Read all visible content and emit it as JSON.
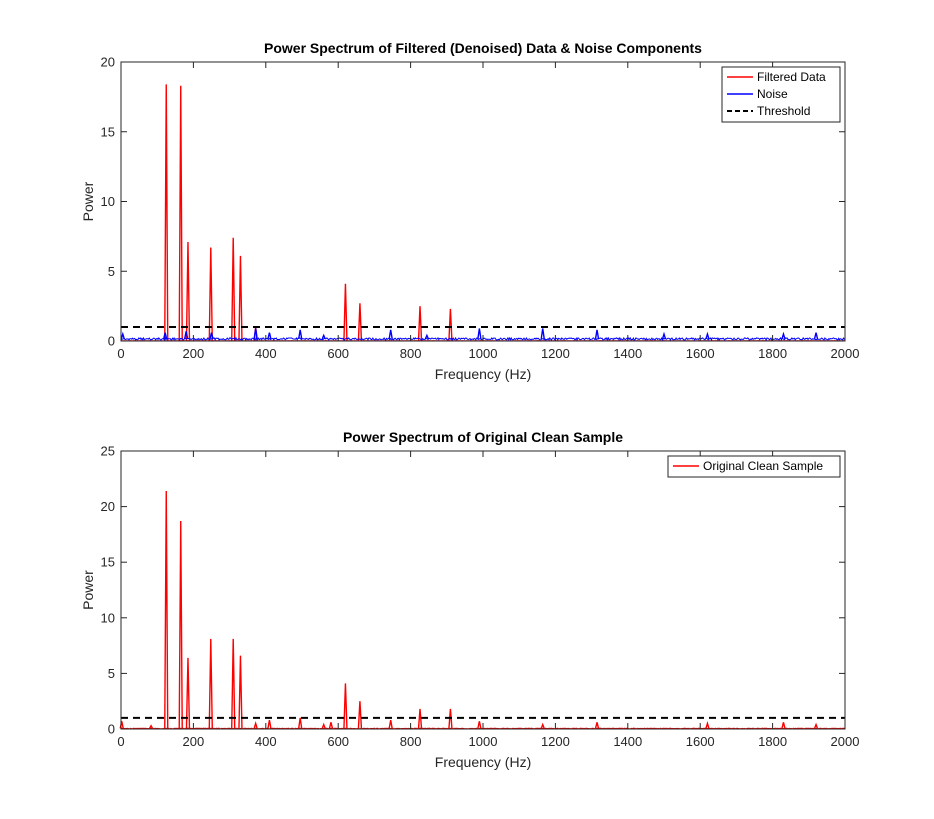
{
  "chart_data": [
    {
      "type": "line",
      "title": "Power Spectrum of Filtered (Denoised) Data & Noise Components",
      "xlabel": "Frequency (Hz)",
      "ylabel": "Power",
      "xlim": [
        0,
        2000
      ],
      "ylim": [
        0,
        20
      ],
      "xticks": [
        0,
        200,
        400,
        600,
        800,
        1000,
        1200,
        1400,
        1600,
        1800,
        2000
      ],
      "yticks": [
        0,
        5,
        10,
        15,
        20
      ],
      "legend_position": "top-right",
      "grid": false,
      "series": [
        {
          "name": "Filtered Data",
          "color": "#ff0000",
          "style": "solid",
          "peaks": [
            {
              "x": 125,
              "y": 18.4
            },
            {
              "x": 165,
              "y": 18.3
            },
            {
              "x": 185,
              "y": 7.1
            },
            {
              "x": 248,
              "y": 6.7
            },
            {
              "x": 310,
              "y": 7.4
            },
            {
              "x": 330,
              "y": 6.1
            },
            {
              "x": 372,
              "y": 1.0
            },
            {
              "x": 620,
              "y": 4.1
            },
            {
              "x": 660,
              "y": 2.7
            },
            {
              "x": 826,
              "y": 2.5
            },
            {
              "x": 910,
              "y": 2.3
            }
          ]
        },
        {
          "name": "Noise",
          "color": "#0000ff",
          "style": "solid",
          "baseline": 0.15,
          "peaks": [
            {
              "x": 5,
              "y": 0.5
            },
            {
              "x": 122,
              "y": 0.6
            },
            {
              "x": 180,
              "y": 0.7
            },
            {
              "x": 250,
              "y": 0.6
            },
            {
              "x": 372,
              "y": 0.9
            },
            {
              "x": 410,
              "y": 0.6
            },
            {
              "x": 495,
              "y": 0.8
            },
            {
              "x": 560,
              "y": 0.4
            },
            {
              "x": 745,
              "y": 0.8
            },
            {
              "x": 845,
              "y": 0.4
            },
            {
              "x": 990,
              "y": 0.9
            },
            {
              "x": 1165,
              "y": 0.9
            },
            {
              "x": 1315,
              "y": 0.8
            },
            {
              "x": 1500,
              "y": 0.5
            },
            {
              "x": 1620,
              "y": 0.5
            },
            {
              "x": 1830,
              "y": 0.5
            },
            {
              "x": 1920,
              "y": 0.6
            }
          ]
        },
        {
          "name": "Threshold",
          "color": "#000000",
          "style": "dashed",
          "y": 1.0
        }
      ]
    },
    {
      "type": "line",
      "title": "Power Spectrum of Original Clean Sample",
      "xlabel": "Frequency (Hz)",
      "ylabel": "Power",
      "xlim": [
        0,
        2000
      ],
      "ylim": [
        0,
        25
      ],
      "xticks": [
        0,
        200,
        400,
        600,
        800,
        1000,
        1200,
        1400,
        1600,
        1800,
        2000
      ],
      "yticks": [
        0,
        5,
        10,
        15,
        20,
        25
      ],
      "legend_position": "top-right",
      "grid": false,
      "series": [
        {
          "name": "Original Clean Sample",
          "color": "#ff0000",
          "style": "solid",
          "baseline": 0.05,
          "peaks": [
            {
              "x": 2,
              "y": 0.7
            },
            {
              "x": 83,
              "y": 0.3
            },
            {
              "x": 125,
              "y": 21.4
            },
            {
              "x": 165,
              "y": 18.7
            },
            {
              "x": 185,
              "y": 6.4
            },
            {
              "x": 248,
              "y": 8.1
            },
            {
              "x": 310,
              "y": 8.1
            },
            {
              "x": 330,
              "y": 6.6
            },
            {
              "x": 372,
              "y": 0.5
            },
            {
              "x": 410,
              "y": 0.8
            },
            {
              "x": 495,
              "y": 1.0
            },
            {
              "x": 560,
              "y": 0.4
            },
            {
              "x": 580,
              "y": 0.6
            },
            {
              "x": 620,
              "y": 4.1
            },
            {
              "x": 660,
              "y": 2.5
            },
            {
              "x": 745,
              "y": 0.8
            },
            {
              "x": 826,
              "y": 1.8
            },
            {
              "x": 910,
              "y": 1.8
            },
            {
              "x": 990,
              "y": 0.7
            },
            {
              "x": 1165,
              "y": 0.4
            },
            {
              "x": 1315,
              "y": 0.6
            },
            {
              "x": 1620,
              "y": 0.5
            },
            {
              "x": 1830,
              "y": 0.6
            },
            {
              "x": 1920,
              "y": 0.4
            }
          ]
        },
        {
          "name": "",
          "color": "#000000",
          "style": "dashed",
          "y": 1.0
        }
      ]
    }
  ]
}
